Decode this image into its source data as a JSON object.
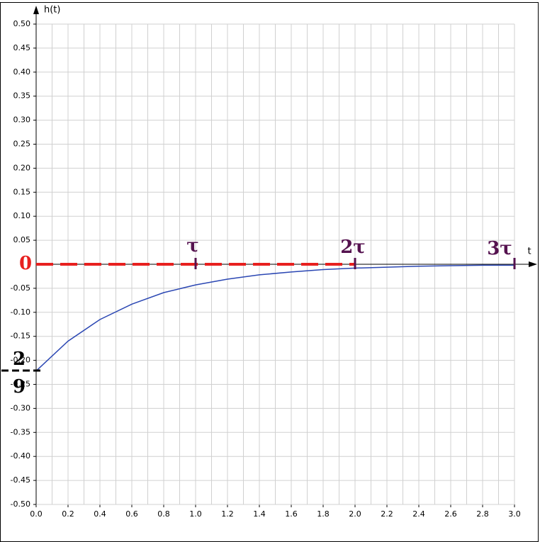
{
  "chart_data": {
    "type": "line",
    "xlabel": "t",
    "ylabel": "h(t)",
    "x": [
      0,
      0.2,
      0.4,
      0.6,
      0.8,
      1,
      1.2,
      1.4,
      1.6,
      1.8,
      2,
      2.2,
      2.4,
      2.6,
      2.8,
      3
    ],
    "series": [
      {
        "color": "#2b47b3",
        "values": [
          -0.222,
          -0.16,
          -0.115,
          -0.083,
          -0.059,
          -0.043,
          -0.031,
          -0.022,
          -0.016,
          -0.011,
          -0.008,
          -0.006,
          -0.004,
          -0.003,
          -0.002,
          -0.002
        ]
      },
      {
        "color": "#e8201f",
        "dashed": true,
        "values": [
          0,
          0,
          0,
          0,
          0,
          0,
          0,
          0,
          0,
          0,
          0,
          null,
          null,
          null,
          null,
          null
        ]
      }
    ],
    "xlim": [
      0,
      3
    ],
    "ylim": [
      -0.5,
      0.5
    ],
    "xticks": [
      {
        "value": 0,
        "label": "0.0"
      },
      0.2,
      0.4,
      0.6,
      0.8,
      {
        "value": 1,
        "label": "1.0"
      },
      1.2,
      1.4,
      1.6,
      1.8,
      {
        "value": 2,
        "label": "2.0"
      },
      2.2,
      2.4,
      2.6,
      2.8,
      {
        "value": 3,
        "label": "3.0"
      }
    ],
    "xgrid": [
      0.1,
      0.3,
      0.5,
      0.7,
      0.9,
      1.1,
      1.3,
      1.5,
      1.7,
      1.9,
      2.1,
      2.3,
      2.5,
      2.7,
      2.9
    ],
    "yticks": [
      {
        "value": 0.5,
        "label": "0.50"
      },
      0.45,
      {
        "value": 0.4,
        "label": "0.40"
      },
      0.35,
      {
        "value": 0.3,
        "label": "0.30"
      },
      0.25,
      {
        "value": 0.2,
        "label": "0.20"
      },
      0.15,
      {
        "value": 0.1,
        "label": "0.10"
      },
      0.05,
      -0.05,
      {
        "value": -0.1,
        "label": "-0.10"
      },
      -0.15,
      {
        "value": -0.2,
        "label": "-0.20"
      },
      -0.25,
      {
        "value": -0.3,
        "label": "-0.30"
      },
      -0.35,
      {
        "value": -0.4,
        "label": "-0.40"
      },
      -0.45,
      {
        "value": -0.5,
        "label": "-0.50"
      }
    ],
    "grid": true,
    "annotations": [
      "τ",
      "2τ",
      "3τ",
      "0"
    ],
    "fraction": {
      "numerator": "2",
      "denominator": "9"
    }
  }
}
